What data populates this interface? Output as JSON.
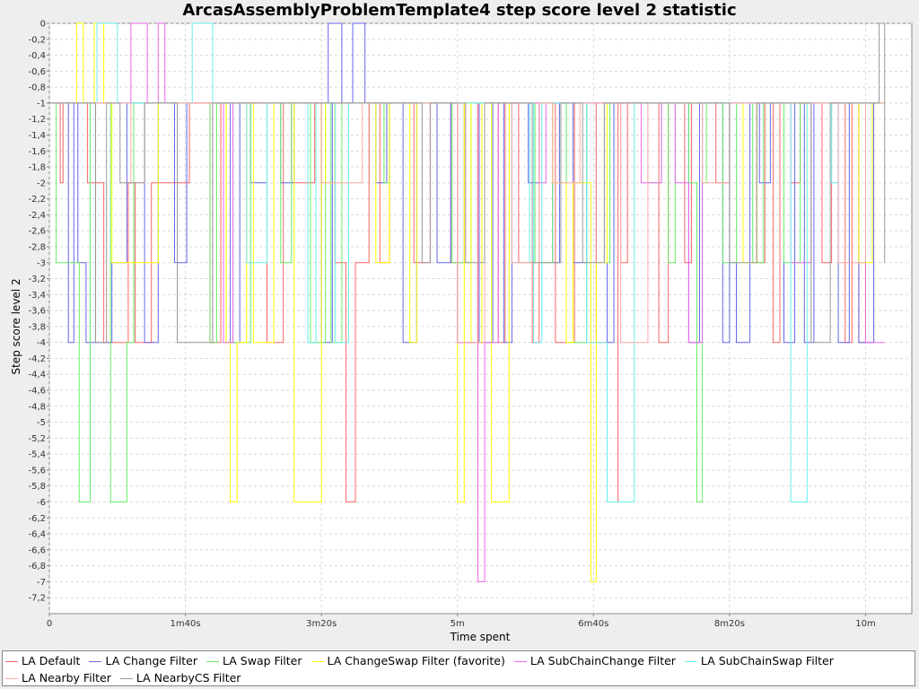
{
  "chart_data": {
    "type": "line",
    "step": true,
    "title": "ArcasAssemblyProblemTemplate4 step score level 2 statistic",
    "xlabel": "Time spent",
    "ylabel": "Step score level 2",
    "xlim": [
      0,
      634
    ],
    "ylim": [
      -7.4,
      0
    ],
    "grid": true,
    "legend_position": "bottom",
    "x_ticks": [
      {
        "value": 0,
        "label": "0"
      },
      {
        "value": 100,
        "label": "1m40s"
      },
      {
        "value": 200,
        "label": "3m20s"
      },
      {
        "value": 300,
        "label": "5m"
      },
      {
        "value": 400,
        "label": "6m40s"
      },
      {
        "value": 500,
        "label": "8m20s"
      },
      {
        "value": 600,
        "label": "10m"
      }
    ],
    "y_ticks": [
      {
        "value": 0,
        "label": "0"
      },
      {
        "value": -0.2,
        "label": "-0,2"
      },
      {
        "value": -0.4,
        "label": "-0,4"
      },
      {
        "value": -0.6,
        "label": "-0,6"
      },
      {
        "value": -0.8,
        "label": "-0,8"
      },
      {
        "value": -1,
        "label": "-1"
      },
      {
        "value": -1.2,
        "label": "-1,2"
      },
      {
        "value": -1.4,
        "label": "-1,4"
      },
      {
        "value": -1.6,
        "label": "-1,6"
      },
      {
        "value": -1.8,
        "label": "-1,8"
      },
      {
        "value": -2,
        "label": "-2"
      },
      {
        "value": -2.2,
        "label": "-2,2"
      },
      {
        "value": -2.4,
        "label": "-2,4"
      },
      {
        "value": -2.6,
        "label": "-2,6"
      },
      {
        "value": -2.8,
        "label": "-2,8"
      },
      {
        "value": -3,
        "label": "-3"
      },
      {
        "value": -3.2,
        "label": "-3,2"
      },
      {
        "value": -3.4,
        "label": "-3,4"
      },
      {
        "value": -3.6,
        "label": "-3,6"
      },
      {
        "value": -3.8,
        "label": "-3,8"
      },
      {
        "value": -4,
        "label": "-4"
      },
      {
        "value": -4.2,
        "label": "-4,2"
      },
      {
        "value": -4.4,
        "label": "-4,4"
      },
      {
        "value": -4.6,
        "label": "-4,6"
      },
      {
        "value": -4.8,
        "label": "-4,8"
      },
      {
        "value": -5,
        "label": "-5"
      },
      {
        "value": -5.2,
        "label": "-5,2"
      },
      {
        "value": -5.4,
        "label": "-5,4"
      },
      {
        "value": -5.6,
        "label": "-5,6"
      },
      {
        "value": -5.8,
        "label": "-5,8"
      },
      {
        "value": -6,
        "label": "-6"
      },
      {
        "value": -6.2,
        "label": "-6,2"
      },
      {
        "value": -6.4,
        "label": "-6,4"
      },
      {
        "value": -6.6,
        "label": "-6,6"
      },
      {
        "value": -6.8,
        "label": "-6,8"
      },
      {
        "value": -7,
        "label": "-7"
      },
      {
        "value": -7.2,
        "label": "-7,2"
      }
    ],
    "series": [
      {
        "name": "LA Default",
        "color": "#ff6666",
        "x": [
          0,
          8,
          10,
          28,
          40,
          55,
          58,
          63,
          75,
          85,
          100,
          103,
          112,
          118,
          126,
          148,
          160,
          172,
          178,
          195,
          200,
          210,
          218,
          225,
          235,
          243,
          250,
          262,
          268,
          280,
          290,
          295,
          305,
          315,
          320,
          330,
          335,
          345,
          355,
          360,
          372,
          386,
          395,
          402,
          410,
          418,
          420,
          425,
          432,
          438,
          448,
          455,
          460,
          467,
          472,
          480,
          490,
          500,
          505,
          512,
          520,
          526,
          532,
          537,
          545,
          552,
          560,
          568,
          575,
          585,
          590,
          595,
          600,
          606,
          610,
          614
        ],
        "y": [
          -1,
          -2,
          -1,
          -2,
          -4,
          -4,
          -2,
          -4,
          -2,
          -2,
          -2,
          -1,
          -1,
          -4,
          -1,
          -1,
          -4,
          -1,
          -2,
          -1,
          -1,
          -3,
          -6,
          -3,
          -1,
          -3,
          -1,
          -1,
          -3,
          -1,
          -1,
          -3,
          -1,
          -4,
          -1,
          -4,
          -1,
          -3,
          -4,
          -1,
          -4,
          -1,
          -1,
          -4,
          -6,
          -1,
          -3,
          -1,
          -1,
          -1,
          -4,
          -1,
          -1,
          -3,
          -1,
          -1,
          -2,
          -1,
          -1,
          -1,
          -3,
          -1,
          -4,
          -1,
          -2,
          -1,
          -1,
          -3,
          -1,
          -4,
          -1,
          -4,
          -1,
          -1,
          -1,
          -1
        ]
      },
      {
        "name": "LA Change Filter",
        "color": "#6666ee",
        "x": [
          0,
          14,
          18,
          21,
          27,
          35,
          46,
          57,
          70,
          80,
          90,
          92,
          101,
          108,
          120,
          133,
          140,
          148,
          160,
          168,
          170,
          180,
          190,
          200,
          208,
          205,
          215,
          218,
          223,
          232,
          240,
          248,
          260,
          270,
          285,
          295,
          300,
          308,
          316,
          320,
          326,
          334,
          340,
          352,
          360,
          370,
          375,
          385,
          395,
          410,
          415,
          420,
          428,
          437,
          445,
          452,
          460,
          470,
          478,
          485,
          495,
          500,
          505,
          515,
          522,
          530,
          540,
          548,
          555,
          562,
          570,
          580,
          588,
          595,
          606,
          614
        ],
        "y": [
          -1,
          -4,
          -1,
          -3,
          -4,
          -4,
          -3,
          -1,
          -4,
          -1,
          -1,
          -3,
          -1,
          -1,
          -1,
          -4,
          -1,
          -2,
          -1,
          -1,
          -2,
          -1,
          -1,
          -4,
          -1,
          0,
          -1,
          -1,
          0,
          -1,
          -2,
          -1,
          -4,
          -1,
          -3,
          -1,
          -4,
          -4,
          -1,
          -4,
          -1,
          -4,
          -1,
          -2,
          -1,
          -3,
          -1,
          -3,
          -1,
          -4,
          -1,
          -1,
          -1,
          -1,
          -1,
          -1,
          -1,
          -4,
          -1,
          -1,
          -4,
          -1,
          -4,
          -1,
          -2,
          -1,
          -4,
          -1,
          -4,
          -1,
          -1,
          -4,
          -1,
          -4,
          -1,
          -1
        ]
      },
      {
        "name": "LA Swap Filter",
        "color": "#66ee66",
        "x": [
          0,
          5,
          22,
          30,
          45,
          57,
          62,
          85,
          105,
          113,
          118,
          123,
          135,
          148,
          155,
          170,
          178,
          192,
          203,
          207,
          215,
          226,
          240,
          246,
          250,
          258,
          275,
          286,
          296,
          310,
          320,
          325,
          335,
          345,
          357,
          370,
          380,
          395,
          400,
          408,
          412,
          418,
          424,
          430,
          432,
          440,
          450,
          455,
          460,
          470,
          476,
          480,
          483,
          495,
          505,
          511,
          517,
          525,
          530,
          540,
          547,
          552,
          560,
          573,
          580,
          588,
          595,
          600,
          614
        ],
        "y": [
          -1,
          -3,
          -6,
          -1,
          -6,
          -4,
          -1,
          -1,
          -1,
          -1,
          -4,
          -1,
          -4,
          -1,
          -1,
          -3,
          -1,
          -4,
          -1,
          -4,
          -1,
          -1,
          -1,
          -2,
          -1,
          -1,
          -1,
          -1,
          -3,
          -1,
          -1,
          -1,
          -1,
          -1,
          -3,
          -1,
          -4,
          -1,
          -1,
          -3,
          -1,
          -1,
          -1,
          -1,
          -1,
          -2,
          -1,
          -3,
          -1,
          -2,
          -6,
          -2,
          -1,
          -3,
          -1,
          -1,
          -3,
          -1,
          -1,
          -3,
          -3,
          -1,
          -1,
          -1,
          -1,
          -1,
          -1,
          -1,
          -1
        ]
      },
      {
        "name": "LA ChangeSwap Filter (favorite)",
        "color": "#ffff00",
        "x": [
          0,
          20,
          25,
          33,
          40,
          46,
          55,
          60,
          80,
          100,
          118,
          130,
          133,
          138,
          145,
          150,
          165,
          180,
          200,
          203,
          210,
          215,
          225,
          230,
          240,
          250,
          255,
          265,
          270,
          278,
          290,
          295,
          300,
          305,
          310,
          318,
          325,
          338,
          345,
          355,
          370,
          380,
          385,
          398,
          402,
          410,
          425,
          435,
          440,
          455,
          470,
          475,
          480,
          492,
          500,
          510,
          520,
          525,
          535,
          545,
          560,
          573,
          580,
          595,
          605,
          614
        ],
        "y": [
          -1,
          0,
          -1,
          0,
          -1,
          -3,
          -3,
          -3,
          -1,
          -1,
          -1,
          -4,
          -6,
          -4,
          -1,
          -4,
          -1,
          -6,
          -1,
          -2,
          -1,
          -1,
          -1,
          -1,
          -3,
          -1,
          -1,
          -4,
          -1,
          -1,
          -1,
          -1,
          -6,
          -1,
          -4,
          -1,
          -6,
          -1,
          -1,
          -1,
          -2,
          -4,
          -2,
          -7,
          -3,
          -1,
          -1,
          -1,
          -1,
          -1,
          -1,
          -1,
          -1,
          -1,
          -1,
          -3,
          -1,
          -1,
          -1,
          -1,
          -1,
          -1,
          -1,
          -3,
          -1,
          -1
        ]
      },
      {
        "name": "LA SubChainChange Filter",
        "color": "#ee66ee",
        "x": [
          0,
          60,
          72,
          80,
          85,
          105,
          115,
          128,
          132,
          135,
          140,
          160,
          176,
          180,
          200,
          215,
          225,
          240,
          255,
          265,
          280,
          300,
          315,
          320,
          330,
          345,
          355,
          360,
          365,
          375,
          380,
          395,
          402,
          410,
          425,
          435,
          450,
          460,
          470,
          480,
          500,
          520,
          535,
          545,
          560,
          575,
          580,
          600,
          614
        ],
        "y": [
          -1,
          0,
          -1,
          0,
          -1,
          -1,
          -1,
          -4,
          -4,
          -1,
          -1,
          -1,
          -1,
          -1,
          -1,
          -1,
          -1,
          -1,
          -1,
          -1,
          -1,
          -4,
          -7,
          -4,
          -1,
          -1,
          -1,
          -2,
          -1,
          -1,
          -1,
          -1,
          -1,
          -1,
          -1,
          -2,
          -1,
          -2,
          -4,
          -1,
          -1,
          -1,
          -1,
          -3,
          -1,
          -1,
          -1,
          -4,
          -4
        ]
      },
      {
        "name": "LA SubChainSwap Filter",
        "color": "#66eeee",
        "x": [
          0,
          35,
          50,
          80,
          90,
          105,
          120,
          135,
          140,
          145,
          160,
          175,
          190,
          196,
          210,
          220,
          235,
          247,
          260,
          270,
          282,
          295,
          305,
          317,
          330,
          340,
          345,
          353,
          356,
          362,
          368,
          380,
          395,
          410,
          430,
          440,
          455,
          470,
          480,
          500,
          510,
          520,
          535,
          545,
          557,
          565,
          575,
          580,
          590,
          600,
          614
        ],
        "y": [
          -1,
          0,
          -1,
          -1,
          -1,
          0,
          -1,
          -1,
          -1,
          -3,
          -1,
          -1,
          -4,
          -1,
          -4,
          -1,
          -1,
          -1,
          -1,
          -1,
          -1,
          -1,
          -1,
          -1,
          -1,
          -3,
          -3,
          -1,
          -4,
          -1,
          -1,
          -1,
          -4,
          -6,
          -1,
          -1,
          -1,
          -1,
          -1,
          -1,
          -1,
          -1,
          -1,
          -6,
          -1,
          -1,
          -2,
          -1,
          -1,
          -1,
          -1
        ]
      },
      {
        "name": "LA Nearby Filter",
        "color": "#ffaaaa",
        "x": [
          0,
          12,
          25,
          40,
          55,
          60,
          70,
          80,
          90,
          120,
          150,
          160,
          180,
          200,
          230,
          245,
          260,
          280,
          300,
          320,
          340,
          360,
          370,
          390,
          405,
          420,
          440,
          460,
          480,
          500,
          520,
          540,
          560,
          580,
          600,
          614
        ],
        "y": [
          -1,
          -1,
          -1,
          -1,
          -1,
          -2,
          -1,
          -1,
          -1,
          -1,
          -1,
          -1,
          -1,
          -2,
          -1,
          -1,
          -1,
          -1,
          -4,
          -1,
          -3,
          -1,
          -2,
          -1,
          -1,
          -4,
          -1,
          -1,
          -2,
          -1,
          -1,
          -1,
          -1,
          -3,
          -1,
          -1
        ]
      },
      {
        "name": "LA NearbyCS Filter",
        "color": "#999999",
        "x": [
          0,
          2,
          24,
          34,
          42,
          52,
          70,
          90,
          94,
          120,
          130,
          145,
          160,
          190,
          200,
          210,
          228,
          235,
          246,
          262,
          274,
          280,
          288,
          306,
          320,
          338,
          355,
          376,
          392,
          408,
          420,
          440,
          460,
          484,
          500,
          520,
          540,
          560,
          574,
          580,
          600,
          610,
          614
        ],
        "y": [
          -1,
          -1,
          -1,
          -4,
          -1,
          -2,
          -1,
          -1,
          -4,
          -1,
          -1,
          -1,
          -1,
          -1,
          -1,
          -1,
          -1,
          -1,
          -1,
          -1,
          -3,
          -1,
          -1,
          -3,
          -1,
          -1,
          -3,
          -1,
          -3,
          -1,
          -1,
          -1,
          -1,
          -1,
          -3,
          -1,
          -1,
          -4,
          -1,
          -1,
          -1,
          0,
          -3
        ]
      }
    ]
  }
}
